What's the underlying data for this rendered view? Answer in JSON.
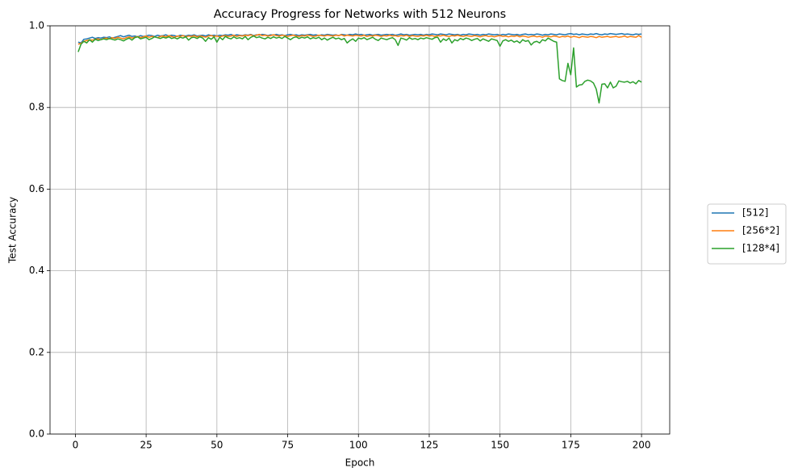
{
  "chart_data": {
    "type": "line",
    "title": "Accuracy Progress for Networks with 512 Neurons",
    "x_label": "Epoch",
    "y_label": "Test Accuracy",
    "x": [
      1,
      2,
      3,
      4,
      5,
      6,
      7,
      8,
      9,
      10,
      11,
      12,
      13,
      14,
      15,
      16,
      17,
      18,
      19,
      20,
      21,
      22,
      23,
      24,
      25,
      26,
      27,
      28,
      29,
      30,
      31,
      32,
      33,
      34,
      35,
      36,
      37,
      38,
      39,
      40,
      41,
      42,
      43,
      44,
      45,
      46,
      47,
      48,
      49,
      50,
      51,
      52,
      53,
      54,
      55,
      56,
      57,
      58,
      59,
      60,
      61,
      62,
      63,
      64,
      65,
      66,
      67,
      68,
      69,
      70,
      71,
      72,
      73,
      74,
      75,
      76,
      77,
      78,
      79,
      80,
      81,
      82,
      83,
      84,
      85,
      86,
      87,
      88,
      89,
      90,
      91,
      92,
      93,
      94,
      95,
      96,
      97,
      98,
      99,
      100,
      101,
      102,
      103,
      104,
      105,
      106,
      107,
      108,
      109,
      110,
      111,
      112,
      113,
      114,
      115,
      116,
      117,
      118,
      119,
      120,
      121,
      122,
      123,
      124,
      125,
      126,
      127,
      128,
      129,
      130,
      131,
      132,
      133,
      134,
      135,
      136,
      137,
      138,
      139,
      140,
      141,
      142,
      143,
      144,
      145,
      146,
      147,
      148,
      149,
      150,
      151,
      152,
      153,
      154,
      155,
      156,
      157,
      158,
      159,
      160,
      161,
      162,
      163,
      164,
      165,
      166,
      167,
      168,
      169,
      170,
      171,
      172,
      173,
      174,
      175,
      176,
      177,
      178,
      179,
      180,
      181,
      182,
      183,
      184,
      185,
      186,
      187,
      188,
      189,
      190,
      191,
      192,
      193,
      194,
      195,
      196,
      197,
      198,
      199,
      200
    ],
    "series": [
      {
        "name": "[512]",
        "color": "#1f77b4",
        "values": [
          0.96,
          0.958,
          0.967,
          0.968,
          0.97,
          0.972,
          0.969,
          0.971,
          0.97,
          0.972,
          0.971,
          0.973,
          0.97,
          0.972,
          0.974,
          0.976,
          0.973,
          0.975,
          0.977,
          0.974,
          0.975,
          0.973,
          0.976,
          0.974,
          0.975,
          0.977,
          0.976,
          0.974,
          0.977,
          0.975,
          0.976,
          0.978,
          0.975,
          0.977,
          0.976,
          0.974,
          0.977,
          0.976,
          0.975,
          0.977,
          0.976,
          0.978,
          0.975,
          0.976,
          0.977,
          0.975,
          0.978,
          0.976,
          0.977,
          0.975,
          0.977,
          0.976,
          0.978,
          0.977,
          0.979,
          0.976,
          0.978,
          0.977,
          0.976,
          0.978,
          0.977,
          0.979,
          0.976,
          0.978,
          0.977,
          0.979,
          0.978,
          0.976,
          0.978,
          0.977,
          0.979,
          0.977,
          0.978,
          0.976,
          0.978,
          0.979,
          0.977,
          0.978,
          0.976,
          0.978,
          0.977,
          0.978,
          0.979,
          0.977,
          0.978,
          0.976,
          0.978,
          0.977,
          0.979,
          0.978,
          0.977,
          0.978,
          0.976,
          0.979,
          0.978,
          0.977,
          0.979,
          0.978,
          0.98,
          0.978,
          0.979,
          0.977,
          0.978,
          0.979,
          0.977,
          0.978,
          0.979,
          0.977,
          0.978,
          0.979,
          0.978,
          0.979,
          0.977,
          0.978,
          0.98,
          0.978,
          0.979,
          0.977,
          0.978,
          0.979,
          0.978,
          0.979,
          0.977,
          0.979,
          0.978,
          0.98,
          0.979,
          0.978,
          0.98,
          0.979,
          0.978,
          0.98,
          0.979,
          0.978,
          0.979,
          0.977,
          0.979,
          0.978,
          0.98,
          0.979,
          0.978,
          0.979,
          0.977,
          0.979,
          0.978,
          0.98,
          0.979,
          0.978,
          0.979,
          0.977,
          0.979,
          0.978,
          0.98,
          0.979,
          0.978,
          0.979,
          0.977,
          0.979,
          0.98,
          0.978,
          0.979,
          0.978,
          0.98,
          0.979,
          0.977,
          0.979,
          0.978,
          0.98,
          0.979,
          0.978,
          0.98,
          0.979,
          0.978,
          0.98,
          0.981,
          0.979,
          0.98,
          0.978,
          0.98,
          0.979,
          0.978,
          0.98,
          0.979,
          0.981,
          0.979,
          0.978,
          0.98,
          0.979,
          0.981,
          0.98,
          0.979,
          0.98,
          0.981,
          0.979,
          0.98,
          0.979,
          0.978,
          0.98,
          0.979,
          0.98
        ]
      },
      {
        "name": "[256*2]",
        "color": "#ff7f0e",
        "values": [
          0.955,
          0.957,
          0.962,
          0.964,
          0.966,
          0.965,
          0.967,
          0.968,
          0.966,
          0.969,
          0.97,
          0.968,
          0.971,
          0.969,
          0.972,
          0.97,
          0.968,
          0.971,
          0.973,
          0.97,
          0.972,
          0.974,
          0.971,
          0.973,
          0.975,
          0.972,
          0.974,
          0.973,
          0.971,
          0.974,
          0.975,
          0.973,
          0.976,
          0.974,
          0.972,
          0.975,
          0.974,
          0.976,
          0.973,
          0.975,
          0.974,
          0.976,
          0.973,
          0.975,
          0.974,
          0.972,
          0.975,
          0.976,
          0.974,
          0.975,
          0.973,
          0.975,
          0.976,
          0.974,
          0.975,
          0.977,
          0.974,
          0.976,
          0.975,
          0.977,
          0.976,
          0.978,
          0.975,
          0.977,
          0.979,
          0.976,
          0.977,
          0.975,
          0.976,
          0.978,
          0.976,
          0.975,
          0.977,
          0.976,
          0.974,
          0.976,
          0.977,
          0.975,
          0.974,
          0.976,
          0.975,
          0.977,
          0.976,
          0.974,
          0.975,
          0.977,
          0.976,
          0.975,
          0.977,
          0.976,
          0.975,
          0.977,
          0.976,
          0.978,
          0.975,
          0.977,
          0.976,
          0.975,
          0.977,
          0.976,
          0.975,
          0.977,
          0.974,
          0.976,
          0.975,
          0.977,
          0.976,
          0.974,
          0.976,
          0.975,
          0.977,
          0.975,
          0.976,
          0.974,
          0.976,
          0.975,
          0.977,
          0.974,
          0.976,
          0.975,
          0.974,
          0.976,
          0.975,
          0.977,
          0.975,
          0.976,
          0.974,
          0.976,
          0.975,
          0.977,
          0.975,
          0.974,
          0.976,
          0.975,
          0.977,
          0.975,
          0.974,
          0.976,
          0.975,
          0.974,
          0.976,
          0.975,
          0.973,
          0.975,
          0.976,
          0.974,
          0.975,
          0.973,
          0.975,
          0.976,
          0.974,
          0.975,
          0.973,
          0.975,
          0.974,
          0.976,
          0.973,
          0.975,
          0.974,
          0.972,
          0.974,
          0.975,
          0.973,
          0.974,
          0.972,
          0.975,
          0.974,
          0.973,
          0.975,
          0.974,
          0.972,
          0.974,
          0.973,
          0.975,
          0.972,
          0.974,
          0.973,
          0.971,
          0.974,
          0.973,
          0.972,
          0.974,
          0.973,
          0.971,
          0.974,
          0.972,
          0.973,
          0.974,
          0.972,
          0.973,
          0.974,
          0.972,
          0.973,
          0.975,
          0.972,
          0.974,
          0.973,
          0.972,
          0.976,
          0.972
        ]
      },
      {
        "name": "[128*4]",
        "color": "#2ca02c",
        "values": [
          0.936,
          0.955,
          0.962,
          0.958,
          0.966,
          0.96,
          0.967,
          0.964,
          0.966,
          0.968,
          0.966,
          0.969,
          0.967,
          0.965,
          0.968,
          0.966,
          0.963,
          0.967,
          0.97,
          0.965,
          0.971,
          0.973,
          0.968,
          0.97,
          0.972,
          0.966,
          0.969,
          0.973,
          0.971,
          0.969,
          0.972,
          0.97,
          0.973,
          0.969,
          0.971,
          0.968,
          0.972,
          0.97,
          0.973,
          0.965,
          0.971,
          0.972,
          0.969,
          0.973,
          0.97,
          0.962,
          0.971,
          0.967,
          0.973,
          0.96,
          0.972,
          0.966,
          0.974,
          0.97,
          0.968,
          0.973,
          0.969,
          0.971,
          0.968,
          0.974,
          0.966,
          0.972,
          0.975,
          0.971,
          0.973,
          0.97,
          0.968,
          0.972,
          0.969,
          0.973,
          0.97,
          0.972,
          0.969,
          0.974,
          0.97,
          0.966,
          0.971,
          0.973,
          0.969,
          0.972,
          0.97,
          0.973,
          0.968,
          0.971,
          0.969,
          0.972,
          0.966,
          0.97,
          0.965,
          0.969,
          0.972,
          0.968,
          0.97,
          0.966,
          0.969,
          0.958,
          0.964,
          0.968,
          0.962,
          0.97,
          0.968,
          0.971,
          0.966,
          0.969,
          0.972,
          0.967,
          0.964,
          0.97,
          0.968,
          0.966,
          0.969,
          0.971,
          0.966,
          0.952,
          0.97,
          0.968,
          0.965,
          0.971,
          0.967,
          0.969,
          0.966,
          0.97,
          0.968,
          0.971,
          0.969,
          0.967,
          0.971,
          0.972,
          0.96,
          0.968,
          0.964,
          0.97,
          0.958,
          0.966,
          0.963,
          0.969,
          0.966,
          0.97,
          0.968,
          0.964,
          0.967,
          0.969,
          0.963,
          0.968,
          0.965,
          0.962,
          0.968,
          0.966,
          0.964,
          0.95,
          0.963,
          0.966,
          0.962,
          0.965,
          0.96,
          0.963,
          0.958,
          0.966,
          0.962,
          0.964,
          0.953,
          0.96,
          0.962,
          0.958,
          0.966,
          0.963,
          0.97,
          0.966,
          0.962,
          0.96,
          0.87,
          0.866,
          0.864,
          0.908,
          0.88,
          0.946,
          0.85,
          0.855,
          0.856,
          0.864,
          0.867,
          0.865,
          0.86,
          0.845,
          0.811,
          0.857,
          0.858,
          0.848,
          0.862,
          0.848,
          0.852,
          0.865,
          0.863,
          0.862,
          0.864,
          0.86,
          0.863,
          0.858,
          0.866,
          0.862
        ]
      }
    ],
    "xlim": [
      -8.95,
      209.95
    ],
    "xticks": [
      0,
      25,
      50,
      75,
      100,
      125,
      150,
      175,
      200
    ],
    "ylim": [
      0,
      1
    ],
    "yticks": [
      {
        "value": 0,
        "label": "0.0"
      },
      0.2,
      0.4,
      0.6,
      0.8,
      {
        "value": 1,
        "label": "1.0"
      }
    ],
    "grid": true,
    "legend": "right"
  }
}
